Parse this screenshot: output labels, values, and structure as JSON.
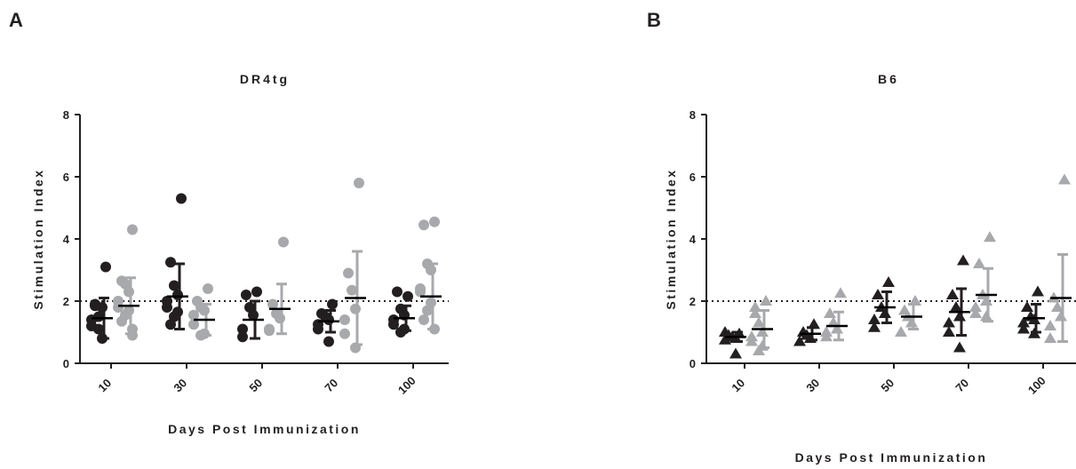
{
  "chart_data": [
    {
      "type": "scatter",
      "panel": "A",
      "title": "DR4tg",
      "ylabel": "Stimulation Index",
      "xlabel": "Days Post Immunization",
      "categories": [
        "10",
        "30",
        "50",
        "70",
        "100"
      ],
      "ylim": [
        0,
        8
      ],
      "yticks": [
        0,
        2,
        4,
        6,
        8
      ],
      "reference_line": 2,
      "series": [
        {
          "color": "#231f20",
          "marker": "circle",
          "points": [
            [
              3.1,
              1.9,
              1.5,
              1.8,
              1.4,
              1.2,
              0.8,
              1.1,
              1.85
            ],
            [
              5.3,
              3.25,
              2.5,
              2.2,
              2.0,
              1.8,
              1.65,
              1.5,
              1.25
            ],
            [
              2.3,
              2.2,
              1.8,
              1.55,
              1.1,
              0.85
            ],
            [
              1.9,
              1.6,
              1.5,
              1.4,
              1.25,
              1.1,
              0.7
            ],
            [
              2.15,
              2.3,
              1.75,
              1.55,
              1.4,
              1.25,
              1.1,
              1.0
            ]
          ],
          "mean": [
            1.45,
            2.15,
            1.4,
            1.35,
            1.45
          ],
          "sd": [
            0.65,
            1.05,
            0.6,
            0.35,
            0.4
          ]
        },
        {
          "color": "#a7a9ac",
          "marker": "circle",
          "points": [
            [
              4.3,
              2.65,
              2.55,
              2.3,
              2.0,
              1.8,
              1.7,
              1.55,
              1.35,
              1.1,
              0.9
            ],
            [
              2.4,
              2.0,
              1.8,
              1.7,
              1.55,
              1.25,
              0.95,
              0.9
            ],
            [
              3.9,
              1.9,
              1.6,
              1.45,
              1.1,
              1.05
            ],
            [
              5.8,
              2.9,
              2.35,
              1.75,
              1.4,
              0.95,
              0.5
            ],
            [
              4.55,
              4.45,
              3.2,
              3.0,
              2.4,
              2.3,
              1.95,
              1.7,
              1.4,
              1.1
            ]
          ],
          "mean": [
            1.85,
            1.4,
            1.75,
            2.1,
            2.15
          ],
          "sd": [
            0.9,
            0.5,
            0.8,
            1.5,
            1.05
          ]
        }
      ]
    },
    {
      "type": "scatter",
      "panel": "B",
      "title": "B6",
      "ylabel": "Stimulation Index",
      "xlabel": "Days Post Immunization",
      "categories": [
        "10",
        "30",
        "50",
        "70",
        "100"
      ],
      "ylim": [
        0,
        8
      ],
      "yticks": [
        0,
        2,
        4,
        6,
        8
      ],
      "reference_line": 2,
      "series": [
        {
          "color": "#231f20",
          "marker": "triangle",
          "points": [
            [
              0.95,
              0.9,
              0.85,
              0.8,
              1.0,
              0.75,
              0.3
            ],
            [
              1.25,
              1.0,
              0.9,
              0.8,
              0.7
            ],
            [
              2.6,
              2.2,
              1.8,
              1.6,
              1.4,
              1.15
            ],
            [
              3.3,
              2.2,
              1.8,
              1.5,
              1.3,
              1.0,
              0.5
            ],
            [
              2.3,
              1.8,
              1.5,
              1.4,
              1.3,
              1.1,
              0.95
            ]
          ],
          "mean": [
            0.85,
            0.95,
            1.8,
            1.65,
            1.45
          ],
          "sd": [
            0.15,
            0.2,
            0.5,
            0.75,
            0.45
          ]
        },
        {
          "color": "#a7a9ac",
          "marker": "triangle",
          "points": [
            [
              2.0,
              1.8,
              1.3,
              1.0,
              0.85,
              0.7,
              0.55,
              0.4,
              1.6
            ],
            [
              2.25,
              1.6,
              1.3,
              1.1,
              1.0,
              0.85
            ],
            [
              2.0,
              1.7,
              1.5,
              1.3,
              1.0
            ],
            [
              4.05,
              3.2,
              2.2,
              2.0,
              1.8,
              1.6,
              1.5
            ],
            [
              5.9,
              2.1,
              1.8,
              1.5,
              1.2,
              0.8
            ]
          ],
          "mean": [
            1.1,
            1.2,
            1.5,
            2.2,
            2.1
          ],
          "sd": [
            0.6,
            0.45,
            0.4,
            0.85,
            1.4
          ]
        }
      ]
    }
  ]
}
